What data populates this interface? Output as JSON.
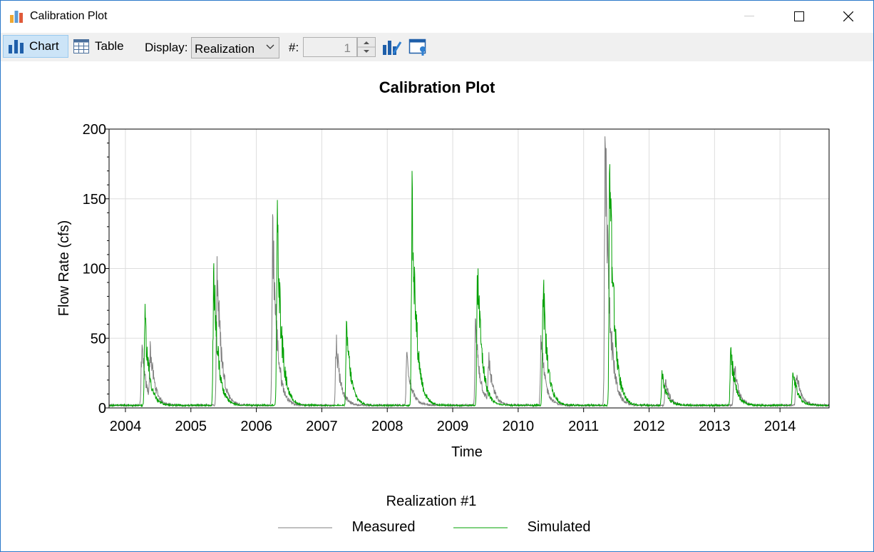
{
  "window": {
    "title": "Calibration Plot",
    "controls": {
      "minimize": "minimize-icon",
      "maximize": "maximize-icon",
      "close": "close-icon"
    }
  },
  "toolbar": {
    "chart_label": "Chart",
    "table_label": "Table",
    "display_label": "Display:",
    "display_value": "Realization",
    "number_label": "#:",
    "number_value": "1",
    "icons": [
      "chart-properties-icon",
      "window-settings-icon"
    ]
  },
  "chart_data": {
    "type": "line",
    "title": "Calibration Plot",
    "xlabel": "Time",
    "ylabel": "Flow Rate (cfs)",
    "ylim": [
      0,
      200
    ],
    "yticks": [
      "0",
      "50",
      "100",
      "150",
      "200"
    ],
    "xlim": [
      2003.75,
      2014.75
    ],
    "xticks": [
      "2004",
      "2005",
      "2006",
      "2007",
      "2008",
      "2009",
      "2010",
      "2011",
      "2012",
      "2013",
      "2014"
    ],
    "grid": true,
    "legend_title": "Realization #1",
    "legend_placement": "bottom",
    "series": [
      {
        "name": "Measured",
        "color": "#7f7f7f",
        "peaks": [
          [
            2004.25,
            40
          ],
          [
            2004.38,
            36
          ],
          [
            2005.4,
            101
          ],
          [
            2006.25,
            130
          ],
          [
            2007.22,
            47
          ],
          [
            2008.3,
            38
          ],
          [
            2009.35,
            58
          ],
          [
            2009.55,
            31
          ],
          [
            2010.35,
            46
          ],
          [
            2011.33,
            195
          ],
          [
            2012.25,
            17
          ],
          [
            2013.3,
            30
          ],
          [
            2014.25,
            25
          ]
        ]
      },
      {
        "name": "Simulated",
        "color": "#00a000",
        "peaks": [
          [
            2004.3,
            61
          ],
          [
            2005.35,
            94
          ],
          [
            2006.32,
            132
          ],
          [
            2007.38,
            55
          ],
          [
            2008.38,
            150
          ],
          [
            2009.38,
            100
          ],
          [
            2010.38,
            89
          ],
          [
            2011.4,
            175
          ],
          [
            2012.2,
            23
          ],
          [
            2013.25,
            40
          ],
          [
            2014.2,
            26
          ]
        ]
      }
    ]
  }
}
